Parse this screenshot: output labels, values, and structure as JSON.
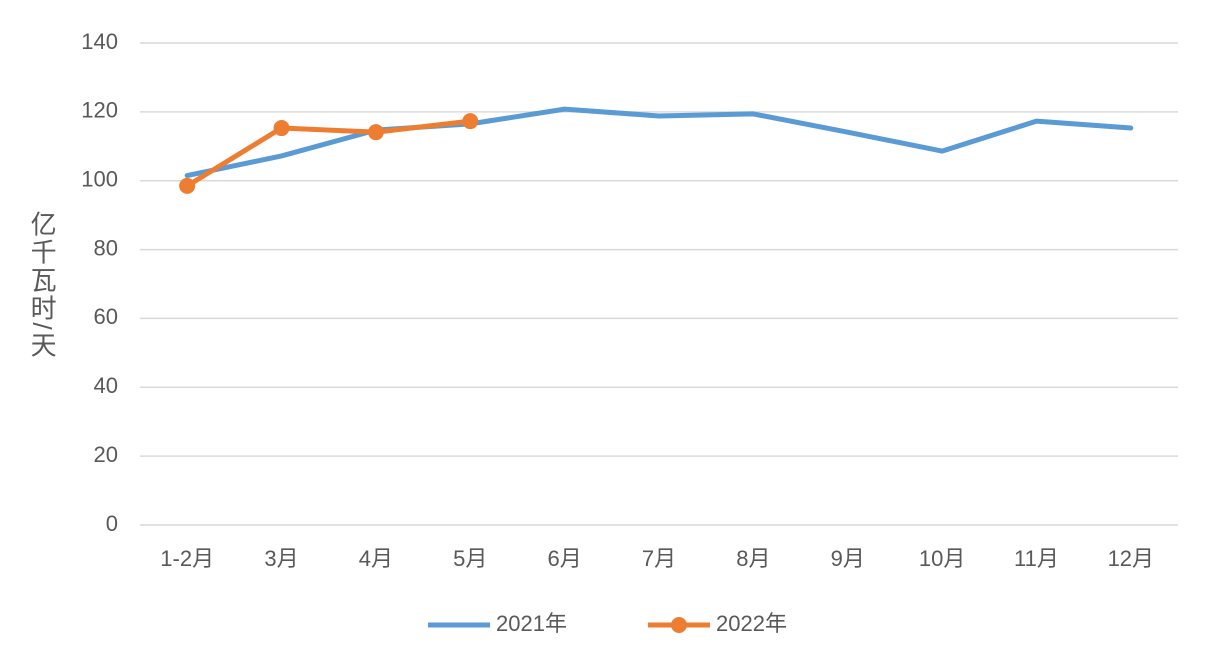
{
  "chart_data": {
    "type": "line",
    "y_label": "亿千瓦时/天",
    "categories": [
      "1-2月",
      "3月",
      "4月",
      "5月",
      "6月",
      "7月",
      "8月",
      "9月",
      "10月",
      "11月",
      "12月"
    ],
    "series": [
      {
        "name": "2021年",
        "color": "#5b9bd5",
        "marker": false,
        "values": [
          101.5,
          107.2,
          114.7,
          116.5,
          120.8,
          118.8,
          119.4,
          114.1,
          108.6,
          117.3,
          115.3
        ]
      },
      {
        "name": "2022年",
        "color": "#ed7d31",
        "marker": true,
        "values": [
          98.5,
          115.3,
          114.1,
          117.3,
          null,
          null,
          null,
          null,
          null,
          null,
          null
        ]
      }
    ],
    "ylim": [
      0,
      140
    ],
    "yticks": [
      0,
      20,
      40,
      60,
      80,
      100,
      120,
      140
    ],
    "grid": true,
    "legend": "bottom"
  }
}
